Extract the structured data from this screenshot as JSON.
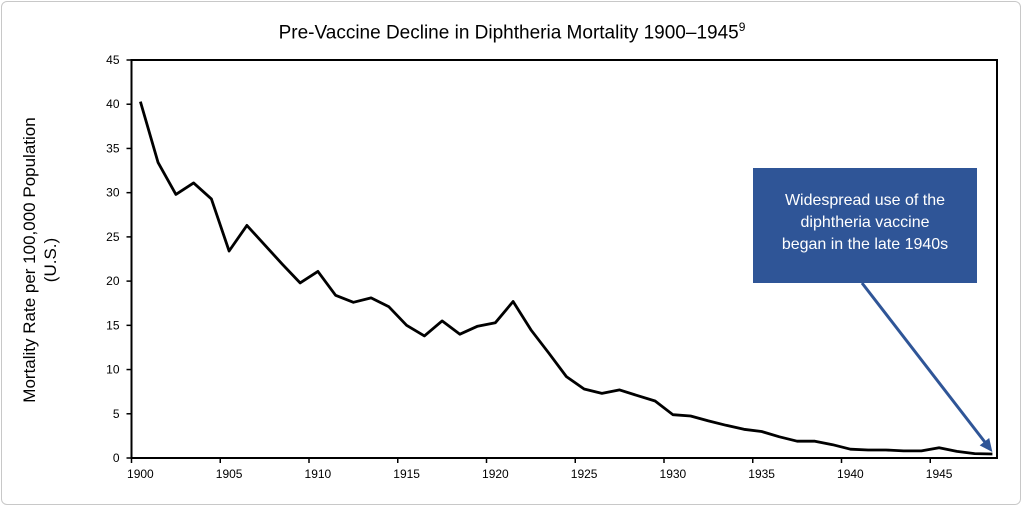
{
  "chart_data": {
    "type": "line",
    "title": "Pre-Vaccine Decline in Diphtheria Mortality 1900–1945",
    "title_superscript": "9",
    "ylabel_line1": "Mortality Rate per 100,000 Population",
    "ylabel_line2": "(U.S.)",
    "xlabel": "",
    "ylim": [
      0,
      45
    ],
    "yticks": [
      0,
      5,
      10,
      15,
      20,
      25,
      30,
      35,
      40,
      45
    ],
    "xticks": [
      1900,
      1905,
      1910,
      1915,
      1920,
      1925,
      1930,
      1935,
      1940,
      1945
    ],
    "grid": false,
    "x": [
      1900,
      1901,
      1902,
      1903,
      1904,
      1905,
      1906,
      1907,
      1908,
      1909,
      1910,
      1911,
      1912,
      1913,
      1914,
      1915,
      1916,
      1917,
      1918,
      1919,
      1920,
      1921,
      1922,
      1923,
      1924,
      1925,
      1926,
      1927,
      1928,
      1929,
      1930,
      1931,
      1932,
      1933,
      1934,
      1935,
      1936,
      1937,
      1938,
      1939,
      1940,
      1941,
      1942,
      1943,
      1944,
      1945,
      1946,
      1947,
      1948
    ],
    "series": [
      {
        "values": [
          40.3,
          33.4,
          29.8,
          31.1,
          29.3,
          23.4,
          26.3,
          24.1,
          21.9,
          19.8,
          21.1,
          18.4,
          17.6,
          18.1,
          17.1,
          15.0,
          13.8,
          15.5,
          14.0,
          14.9,
          15.3,
          17.7,
          14.5,
          11.9,
          9.2,
          7.8,
          7.3,
          7.7,
          7.05,
          6.45,
          4.9,
          4.75,
          4.2,
          3.7,
          3.25,
          3.0,
          2.4,
          1.9,
          1.9,
          1.5,
          1.0,
          0.9,
          0.9,
          0.8,
          0.8,
          1.15,
          0.75,
          0.5,
          0.45
        ],
        "color": "#000000"
      }
    ],
    "annotation": {
      "text": [
        "Widespread use of the",
        "diphtheria vaccine",
        "began in the late 1940s"
      ],
      "box_color": "#2f5597",
      "text_color": "#ffffff",
      "points_to_year": 1948
    }
  }
}
